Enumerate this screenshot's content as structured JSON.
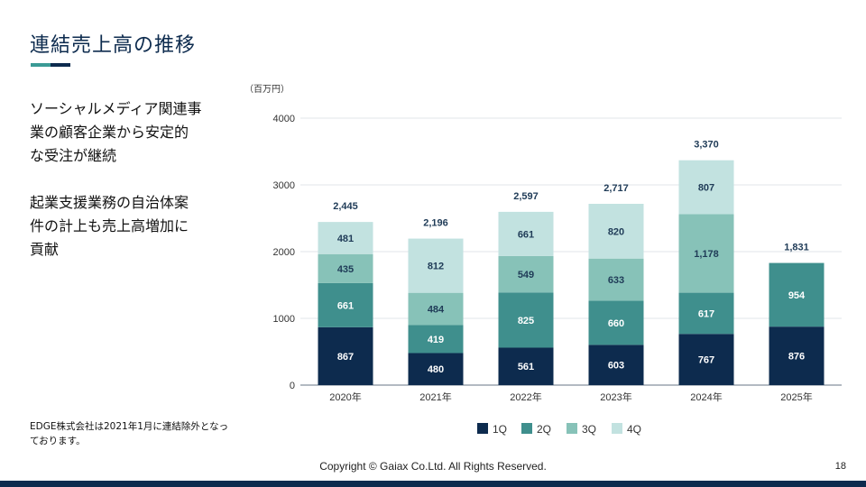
{
  "slide": {
    "title": "連結売上高の推移",
    "bullet1": "ソーシャルメディア関連事\n業の顧客企業から安定的\nな受注が継続",
    "bullet2": "起業支援業務の自治体案\n件の計上も売上高増加に\n貢献",
    "footnote": "EDGE株式会社は2021年1月に連結除外となっ\nております。",
    "copyright": "Copyright © Gaiax Co.Ltd. All Rights Reserved.",
    "page_number": "18"
  },
  "colors": {
    "title": "#0d2b4e",
    "accent_teal": "#3a9a95",
    "accent_navy": "#0d2b4e"
  },
  "chart_data": {
    "type": "bar",
    "stacked": true,
    "unit": "（百万円）",
    "categories": [
      "2020年",
      "2021年",
      "2022年",
      "2023年",
      "2024年",
      "2025年"
    ],
    "series": [
      {
        "name": "1Q",
        "color": "#0d2b4e",
        "label_color": "#ffffff",
        "values": [
          867,
          480,
          561,
          603,
          767,
          876
        ]
      },
      {
        "name": "2Q",
        "color": "#3f8f8d",
        "label_color": "#ffffff",
        "values": [
          661,
          419,
          825,
          660,
          617,
          954
        ]
      },
      {
        "name": "3Q",
        "color": "#87c2b8",
        "label_color": "#1f3b57",
        "values": [
          435,
          484,
          549,
          633,
          1178,
          null
        ]
      },
      {
        "name": "4Q",
        "color": "#c2e2e0",
        "label_color": "#1f3b57",
        "values": [
          481,
          812,
          661,
          820,
          807,
          null
        ]
      }
    ],
    "value_labels": [
      [
        "867",
        "480",
        "561",
        "603",
        "767",
        "876"
      ],
      [
        "661",
        "419",
        "825",
        "660",
        "617",
        "954"
      ],
      [
        "435",
        "484",
        "549",
        "633",
        "1,178",
        ""
      ],
      [
        "481",
        "812",
        "661",
        "820",
        "807",
        ""
      ]
    ],
    "totals": [
      2445,
      2196,
      2597,
      2717,
      3370,
      1831
    ],
    "total_labels": [
      "2,445",
      "2,196",
      "2,597",
      "2,717",
      "3,370",
      "1,831"
    ],
    "y_ticks": [
      0,
      1000,
      2000,
      3000,
      4000
    ],
    "y_tick_labels": [
      "0",
      "1000",
      "2000",
      "3000",
      "4000"
    ],
    "ylim": [
      0,
      4000
    ],
    "grid": true,
    "legend_position": "bottom-center"
  }
}
